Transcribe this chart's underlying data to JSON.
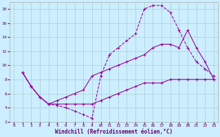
{
  "xlabel": "Windchill (Refroidissement éolien,°C)",
  "bg_color": "#cceeff",
  "line_color": "#990099",
  "marker": "+",
  "xlim": [
    -0.5,
    23.5
  ],
  "ylim": [
    2,
    19
  ],
  "xticks": [
    0,
    1,
    2,
    3,
    4,
    5,
    6,
    7,
    8,
    9,
    10,
    11,
    12,
    13,
    14,
    15,
    16,
    17,
    18,
    19,
    20,
    21,
    22,
    23
  ],
  "yticks": [
    2,
    4,
    6,
    8,
    10,
    12,
    14,
    16,
    18
  ],
  "grid_color": "#aacccc",
  "line1_x": [
    1,
    2,
    3,
    4,
    5,
    6,
    7,
    8,
    9,
    10,
    11,
    12,
    13,
    14,
    15,
    16,
    17,
    18,
    19,
    20,
    21,
    22,
    23
  ],
  "line1_y": [
    9.0,
    7.0,
    5.5,
    4.5,
    4.3,
    4.0,
    3.5,
    3.0,
    2.5,
    8.5,
    11.5,
    12.5,
    13.5,
    14.5,
    18.0,
    18.5,
    18.5,
    17.5,
    15.0,
    12.5,
    10.5,
    9.5,
    8.5
  ],
  "line2_x": [
    1,
    2,
    3,
    4,
    5,
    6,
    7,
    8,
    9,
    10,
    11,
    12,
    13,
    14,
    15,
    16,
    17,
    18,
    19,
    20,
    21,
    22,
    23
  ],
  "line2_y": [
    9.0,
    7.0,
    5.5,
    4.5,
    5.0,
    5.5,
    6.0,
    6.5,
    8.5,
    9.0,
    9.5,
    10.0,
    10.5,
    11.0,
    11.5,
    12.5,
    13.0,
    13.0,
    12.5,
    15.0,
    12.5,
    10.5,
    8.0
  ],
  "line3_x": [
    1,
    2,
    3,
    4,
    5,
    6,
    7,
    8,
    9,
    10,
    11,
    12,
    13,
    14,
    15,
    16,
    17,
    18,
    19,
    20,
    21,
    22,
    23
  ],
  "line3_y": [
    9.0,
    7.0,
    5.5,
    4.5,
    4.5,
    4.5,
    4.5,
    4.5,
    4.5,
    5.0,
    5.5,
    6.0,
    6.5,
    7.0,
    7.5,
    7.5,
    7.5,
    8.0,
    8.0,
    8.0,
    8.0,
    8.0,
    8.0
  ]
}
